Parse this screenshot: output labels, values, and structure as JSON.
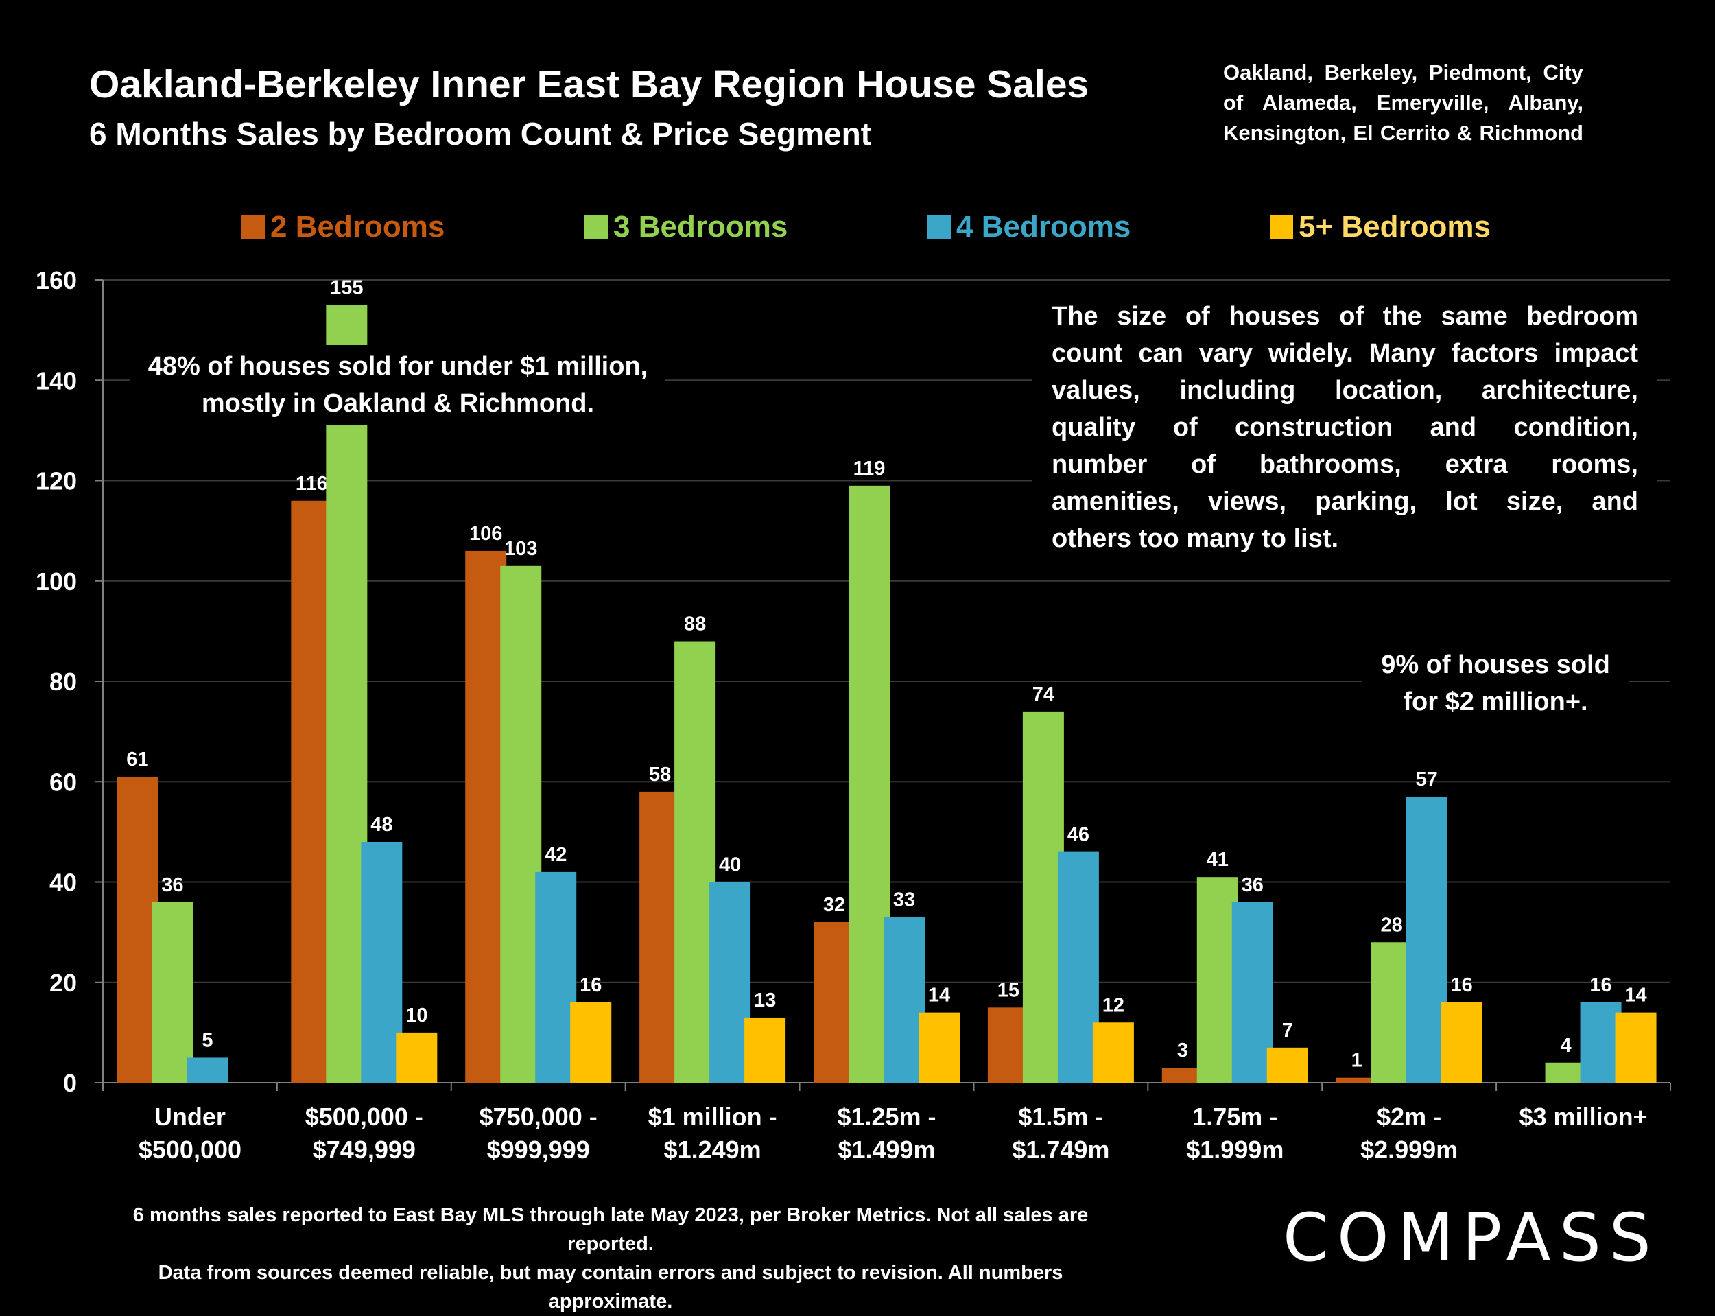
{
  "title": "Oakland-Berkeley Inner East Bay Region House Sales",
  "subtitle": "6 Months Sales by Bedroom Count & Price Segment",
  "region_lines": [
    "Oakland, Berkeley, Piedmont, City",
    "of Alameda, Emeryville, Albany,",
    "Kensington, El Cerrito & Richmond"
  ],
  "colors": {
    "2br": "#C55A11",
    "3br": "#92D050",
    "4br": "#3BA6C8",
    "5br": "#FFC000",
    "grid": "#3a3a3a",
    "axis": "#808080"
  },
  "note_left": "48% of houses sold for under $1 million, mostly in Oakland & Richmond.",
  "note_right_lines": [
    "The size of houses of the same bedroom",
    "count can vary widely. Many factors impact",
    "values, including  location, architecture,",
    "quality of construction and condition,",
    "number of bathrooms, extra rooms,",
    "amenities, views,  parking, lot size, and",
    "others too many to list."
  ],
  "note_2m": "9% of houses sold for $2 million+.",
  "footnote_lines": [
    "6 months sales reported to East Bay MLS through late May 2023, per Broker Metrics. Not all sales are reported.",
    "Data from sources deemed reliable, but may contain errors and subject to revision. All numbers approximate."
  ],
  "logo": "COMPASS",
  "chart_data": {
    "type": "bar",
    "categories": [
      [
        "Under",
        "$500,000"
      ],
      [
        "$500,000 -",
        "$749,999"
      ],
      [
        "$750,000 -",
        "$999,999"
      ],
      [
        "$1 million -",
        "$1.249m"
      ],
      [
        "$1.25m -",
        "$1.499m"
      ],
      [
        "$1.5m -",
        "$1.749m"
      ],
      [
        "1.75m -",
        "$1.999m"
      ],
      [
        "$2m -",
        "$2.999m"
      ],
      [
        "$3 million+"
      ]
    ],
    "series": [
      {
        "name": "2 Bedrooms",
        "color": "#C55A11",
        "values": [
          61,
          116,
          106,
          58,
          32,
          15,
          3,
          1,
          null
        ]
      },
      {
        "name": "3 Bedrooms",
        "color": "#92D050",
        "values": [
          36,
          155,
          103,
          88,
          119,
          74,
          41,
          28,
          4
        ]
      },
      {
        "name": "4 Bedrooms",
        "color": "#3BA6C8",
        "values": [
          5,
          48,
          42,
          40,
          33,
          46,
          36,
          57,
          16
        ]
      },
      {
        "name": "5+ Bedrooms",
        "color": "#FFC000",
        "values": [
          null,
          10,
          16,
          13,
          14,
          12,
          7,
          16,
          14
        ]
      }
    ],
    "ylim": [
      0,
      160
    ],
    "yticks": [
      0,
      20,
      40,
      60,
      80,
      100,
      120,
      140,
      160
    ],
    "grid": true,
    "legend_position": "top"
  }
}
